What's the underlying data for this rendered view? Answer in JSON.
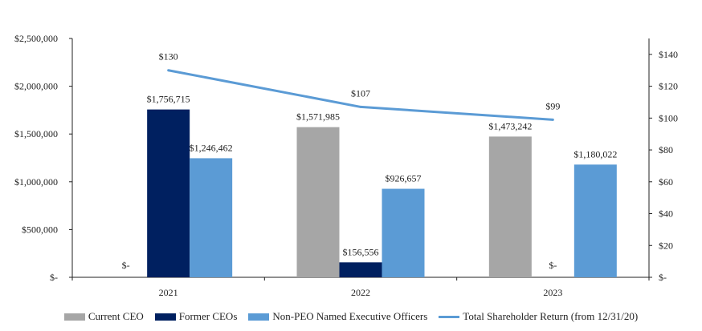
{
  "chart_data": {
    "type": "bar",
    "categories": [
      "2021",
      "2022",
      "2023"
    ],
    "series": [
      {
        "name": "Current CEO",
        "color": "#a6a6a6",
        "values": [
          0,
          1571985,
          1473242
        ],
        "labels": [
          "$-",
          "$1,571,985",
          "$1,473,242"
        ]
      },
      {
        "name": "Former CEOs",
        "color": "#002060",
        "values": [
          1756715,
          156556,
          0
        ],
        "labels": [
          "$1,756,715",
          "$156,556",
          "$-"
        ]
      },
      {
        "name": "Non-PEO Named Executive Officers",
        "color": "#5b9bd5",
        "values": [
          1246462,
          926657,
          1180022
        ],
        "labels": [
          "$1,246,462",
          "$926,657",
          "$1,180,022"
        ]
      }
    ],
    "line_series": {
      "name": "Total Shareholder Return (from 12/31/20)",
      "color": "#5b9bd5",
      "values": [
        130,
        107,
        99
      ],
      "labels": [
        "$130",
        "$107",
        "$99"
      ]
    },
    "ylim": [
      0,
      2500000
    ],
    "yticks": [
      0,
      500000,
      1000000,
      1500000,
      2000000,
      2500000
    ],
    "ytick_labels": [
      "$-",
      "$500,000",
      "$1,000,000",
      "$1,500,000",
      "$2,000,000",
      "$2,500,000"
    ],
    "y2lim": [
      0,
      150
    ],
    "y2ticks": [
      0,
      20,
      40,
      60,
      80,
      100,
      120,
      140
    ],
    "y2tick_labels": [
      "$-",
      "$20",
      "$40",
      "$60",
      "$80",
      "$100",
      "$120",
      "$140"
    ],
    "legend_position": "bottom"
  }
}
